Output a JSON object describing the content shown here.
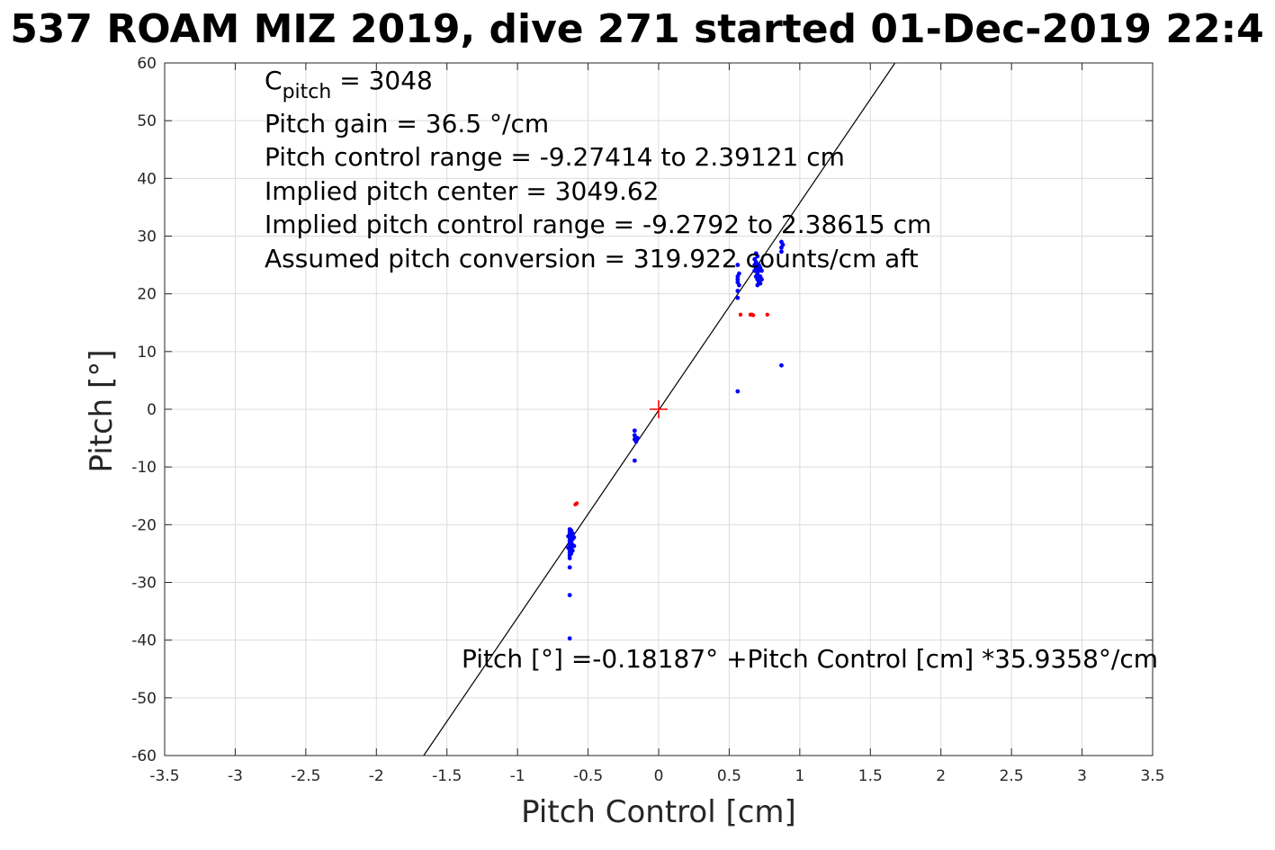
{
  "chart_data": {
    "type": "scatter",
    "title": "537 ROAM MIZ 2019, dive 271 started 01-Dec-2019 22:4",
    "xlabel": "Pitch Control [cm]",
    "ylabel": "Pitch [°]",
    "xlim": [
      -3.5,
      3.5
    ],
    "ylim": [
      -60,
      60
    ],
    "xticks": [
      -3.5,
      -3,
      -2.5,
      -2,
      -1.5,
      -1,
      -0.5,
      0,
      0.5,
      1,
      1.5,
      2,
      2.5,
      3,
      3.5
    ],
    "yticks": [
      -60,
      -50,
      -40,
      -30,
      -20,
      -10,
      0,
      10,
      20,
      30,
      40,
      50,
      60
    ],
    "xtick_labels": [
      "-3.5",
      "-3",
      "-2.5",
      "-2",
      "-1.5",
      "-1",
      "-0.5",
      "0",
      "0.5",
      "1",
      "1.5",
      "2",
      "2.5",
      "3",
      "3.5"
    ],
    "ytick_labels": [
      "-60",
      "-50",
      "-40",
      "-30",
      "-20",
      "-10",
      "0",
      "10",
      "20",
      "30",
      "40",
      "50",
      "60"
    ],
    "grid": true,
    "colors": {
      "fit_line": "#000000",
      "used": "#0000ff",
      "excluded": "#ff0000",
      "center": "#ff0000",
      "grid": "#dcdcdc"
    },
    "fit_line": {
      "intercept": -0.18187,
      "slope": 35.9358
    },
    "center_marker": {
      "x": 0.0,
      "y": 0.0
    },
    "series": [
      {
        "color": "#0000ff",
        "points": [
          [
            -0.63,
            -20.8
          ],
          [
            -0.63,
            -21.3
          ],
          [
            -0.63,
            -21.8
          ],
          [
            -0.63,
            -22.3
          ],
          [
            -0.63,
            -22.8
          ],
          [
            -0.63,
            -23.3
          ],
          [
            -0.63,
            -23.8
          ],
          [
            -0.63,
            -24.3
          ],
          [
            -0.63,
            -24.8
          ],
          [
            -0.63,
            -25.3
          ],
          [
            -0.62,
            -21.0
          ],
          [
            -0.62,
            -22.0
          ],
          [
            -0.62,
            -23.0
          ],
          [
            -0.62,
            -24.0
          ],
          [
            -0.62,
            -25.0
          ],
          [
            -0.61,
            -21.5
          ],
          [
            -0.61,
            -22.5
          ],
          [
            -0.61,
            -23.5
          ],
          [
            -0.61,
            -24.5
          ],
          [
            -0.6,
            -22.2
          ],
          [
            -0.6,
            -23.7
          ],
          [
            -0.64,
            -22.0
          ],
          [
            -0.64,
            -24.0
          ],
          [
            -0.63,
            -25.8
          ],
          [
            -0.63,
            -27.4
          ],
          [
            -0.63,
            -32.2
          ],
          [
            -0.63,
            -39.7
          ],
          [
            -0.17,
            -3.7
          ],
          [
            -0.17,
            -4.5
          ],
          [
            -0.17,
            -5.2
          ],
          [
            -0.16,
            -5.6
          ],
          [
            -0.15,
            -5.0
          ],
          [
            -0.17,
            -8.9
          ],
          [
            0.56,
            25.0
          ],
          [
            0.56,
            23.0
          ],
          [
            0.56,
            22.5
          ],
          [
            0.56,
            22.0
          ],
          [
            0.57,
            21.5
          ],
          [
            0.57,
            23.5
          ],
          [
            0.56,
            20.5
          ],
          [
            0.56,
            19.3
          ],
          [
            0.56,
            3.1
          ],
          [
            0.68,
            24.0
          ],
          [
            0.68,
            25.0
          ],
          [
            0.68,
            26.0
          ],
          [
            0.69,
            23.0
          ],
          [
            0.69,
            24.5
          ],
          [
            0.69,
            25.5
          ],
          [
            0.7,
            22.5
          ],
          [
            0.7,
            23.5
          ],
          [
            0.7,
            24.5
          ],
          [
            0.7,
            26.5
          ],
          [
            0.71,
            22.0
          ],
          [
            0.71,
            24.0
          ],
          [
            0.71,
            25.0
          ],
          [
            0.72,
            23.0
          ],
          [
            0.72,
            24.5
          ],
          [
            0.72,
            21.8
          ],
          [
            0.73,
            24.0
          ],
          [
            0.73,
            22.5
          ],
          [
            0.69,
            27.0
          ],
          [
            0.7,
            21.5
          ],
          [
            0.87,
            29.0
          ],
          [
            0.87,
            28.0
          ],
          [
            0.87,
            27.3
          ],
          [
            0.88,
            28.5
          ],
          [
            0.87,
            7.6
          ]
        ]
      },
      {
        "color": "#ff0000",
        "points": [
          [
            -0.58,
            -16.3
          ],
          [
            -0.59,
            -16.5
          ],
          [
            0.58,
            16.4
          ],
          [
            0.65,
            16.4
          ],
          [
            0.66,
            16.4
          ],
          [
            0.67,
            16.3
          ],
          [
            0.77,
            16.4
          ]
        ]
      }
    ],
    "annotations": {
      "cpitch_base": "C",
      "cpitch_sub": "pitch",
      "cpitch_value": " = 3048",
      "line2": "Pitch gain = 36.5 °/cm",
      "line3": "Pitch control range = -9.27414 to 2.39121 cm",
      "line4": "Implied pitch center = 3049.62",
      "line5": "Implied pitch control range = -9.2792 to 2.38615 cm",
      "line6": "Assumed pitch conversion = 319.922 counts/cm aft",
      "fit_equation": "Pitch [°] =-0.18187° +Pitch Control [cm] *35.9358°/cm"
    }
  }
}
